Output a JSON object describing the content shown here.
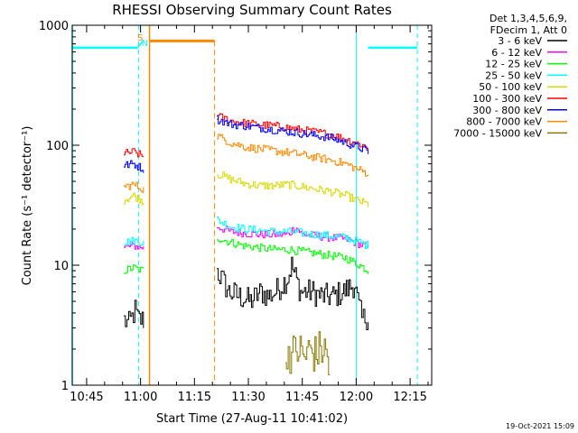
{
  "chart_data": {
    "type": "line",
    "title": "RHESSI Observing Summary Count Rates",
    "xlabel": "Start Time (27-Aug-11 10:41:02)",
    "ylabel": "Count Rate (s⁻¹ detector⁻¹)",
    "xlim_minutes_after_10_41_02": [
      0,
      100
    ],
    "ylim": [
      1,
      1000
    ],
    "yscale": "log",
    "x_ticks": [
      {
        "label": "10:45",
        "minute": 4
      },
      {
        "label": "11:00",
        "minute": 19
      },
      {
        "label": "11:15",
        "minute": 34
      },
      {
        "label": "11:30",
        "minute": 49
      },
      {
        "label": "11:45",
        "minute": 64
      },
      {
        "label": "12:00",
        "minute": 79
      },
      {
        "label": "12:15",
        "minute": 94
      }
    ],
    "y_ticks": [
      {
        "label": "1",
        "value": 1
      },
      {
        "label": "10",
        "value": 10
      },
      {
        "label": "100",
        "value": 100
      },
      {
        "label": "1000",
        "value": 1000
      }
    ],
    "legend_header": [
      "Det 1,3,4,5,6,9,",
      "FDecim 1, Att 0"
    ],
    "legend_placement": "right",
    "series": [
      {
        "name": "3 - 6 keV",
        "color": "#000000",
        "points": [
          [
            14.3,
            3.5
          ],
          [
            15.7,
            3.2
          ],
          [
            17.4,
            4.2
          ],
          [
            18.3,
            3.5
          ],
          [
            19.8,
            3.5
          ],
          [
            40.2,
            9
          ],
          [
            43.5,
            6
          ],
          [
            46.5,
            5.5
          ],
          [
            49.5,
            5
          ],
          [
            52.5,
            6
          ],
          [
            54.5,
            5.5
          ],
          [
            56.5,
            6
          ],
          [
            58.5,
            7
          ],
          [
            60,
            8
          ],
          [
            61,
            10
          ],
          [
            62,
            8
          ],
          [
            63.5,
            6
          ],
          [
            66.5,
            6
          ],
          [
            69.5,
            5.5
          ],
          [
            72.5,
            5.5
          ],
          [
            75.5,
            6
          ],
          [
            78.5,
            7
          ],
          [
            79.3,
            5
          ],
          [
            80.5,
            3.5
          ],
          [
            82.3,
            3.8
          ]
        ]
      },
      {
        "name": "6 - 12 keV",
        "color": "#ff00ff",
        "points": [
          [
            14.3,
            14
          ],
          [
            17,
            14.5
          ],
          [
            19.8,
            14
          ],
          [
            40.2,
            21
          ],
          [
            44,
            19
          ],
          [
            48,
            18.5
          ],
          [
            52,
            18
          ],
          [
            56,
            18
          ],
          [
            60,
            18
          ],
          [
            62,
            21
          ],
          [
            64,
            18
          ],
          [
            68,
            17.5
          ],
          [
            72,
            17
          ],
          [
            76,
            16.5
          ],
          [
            80,
            15
          ],
          [
            82.3,
            14
          ]
        ]
      },
      {
        "name": "12 - 25 keV",
        "color": "#00ff00",
        "points": [
          [
            14.3,
            9
          ],
          [
            17,
            9.5
          ],
          [
            19.8,
            9
          ],
          [
            40.2,
            17
          ],
          [
            44,
            15.5
          ],
          [
            48,
            14.5
          ],
          [
            52,
            14
          ],
          [
            56,
            13.5
          ],
          [
            60,
            13.5
          ],
          [
            64,
            13
          ],
          [
            68,
            12.5
          ],
          [
            72,
            12
          ],
          [
            76,
            11.5
          ],
          [
            80,
            10
          ],
          [
            82.3,
            9
          ]
        ]
      },
      {
        "name": "25 - 50 keV",
        "color": "#00ffff",
        "points": [
          [
            14.3,
            15.5
          ],
          [
            17,
            16
          ],
          [
            19.8,
            15.5
          ],
          [
            40.2,
            24
          ],
          [
            44,
            21
          ],
          [
            48,
            20
          ],
          [
            52,
            19.5
          ],
          [
            56,
            19
          ],
          [
            60,
            19
          ],
          [
            64,
            18.5
          ],
          [
            68,
            18
          ],
          [
            72,
            17.5
          ],
          [
            76,
            17
          ],
          [
            80,
            15.5
          ],
          [
            82.3,
            14.5
          ]
        ]
      },
      {
        "name": "50 - 100 keV",
        "color": "#d8d800",
        "points": [
          [
            14.3,
            35
          ],
          [
            17,
            38
          ],
          [
            19.8,
            34
          ],
          [
            40.2,
            58
          ],
          [
            44,
            52
          ],
          [
            48,
            48
          ],
          [
            52,
            46
          ],
          [
            56,
            46
          ],
          [
            60,
            47
          ],
          [
            64,
            45
          ],
          [
            68,
            43
          ],
          [
            72,
            41
          ],
          [
            76,
            38
          ],
          [
            80,
            34
          ],
          [
            82.3,
            32
          ]
        ]
      },
      {
        "name": "100 - 300 keV",
        "color": "#ff0000",
        "points": [
          [
            14.3,
            85
          ],
          [
            17,
            88
          ],
          [
            19.8,
            80
          ],
          [
            40.2,
            175
          ],
          [
            44,
            160
          ],
          [
            48,
            153
          ],
          [
            52,
            148
          ],
          [
            56,
            145
          ],
          [
            60,
            140
          ],
          [
            64,
            133
          ],
          [
            68,
            128
          ],
          [
            72,
            123
          ],
          [
            76,
            112
          ],
          [
            80,
            102
          ],
          [
            82.3,
            96
          ]
        ]
      },
      {
        "name": "300 - 800 keV",
        "color": "#0000ff",
        "points": [
          [
            14.3,
            68
          ],
          [
            17,
            70
          ],
          [
            19.8,
            63
          ],
          [
            40.2,
            165
          ],
          [
            44,
            150
          ],
          [
            48,
            145
          ],
          [
            52,
            140
          ],
          [
            56,
            135
          ],
          [
            60,
            130
          ],
          [
            64,
            125
          ],
          [
            68,
            120
          ],
          [
            72,
            115
          ],
          [
            76,
            105
          ],
          [
            80,
            95
          ],
          [
            82.3,
            88
          ]
        ]
      },
      {
        "name": "800 - 7000 keV",
        "color": "#ff8800",
        "points": [
          [
            14.3,
            45
          ],
          [
            17,
            47
          ],
          [
            19.8,
            43
          ],
          [
            40.2,
            120
          ],
          [
            44,
            105
          ],
          [
            48,
            97
          ],
          [
            52,
            93
          ],
          [
            56,
            90
          ],
          [
            60,
            87
          ],
          [
            64,
            83
          ],
          [
            68,
            79
          ],
          [
            72,
            75
          ],
          [
            76,
            70
          ],
          [
            80,
            62
          ],
          [
            82.3,
            58
          ]
        ]
      },
      {
        "name": "7000 - 15000 keV",
        "color": "#887700",
        "points": [
          [
            59.5,
            1.2
          ],
          [
            59.6,
            2
          ],
          [
            61,
            1.8
          ],
          [
            63,
            2
          ],
          [
            64.5,
            1.7
          ],
          [
            66,
            2
          ],
          [
            67.5,
            1.8
          ],
          [
            69,
            2
          ],
          [
            70.5,
            1.9
          ],
          [
            71.7,
            1.2
          ]
        ]
      }
    ],
    "annotations": [
      {
        "label": "S",
        "color": "#ff8800"
      },
      {
        "label": "N",
        "color": "#00ffff"
      }
    ],
    "timestamp": "19-Oct-2021 15:09"
  }
}
